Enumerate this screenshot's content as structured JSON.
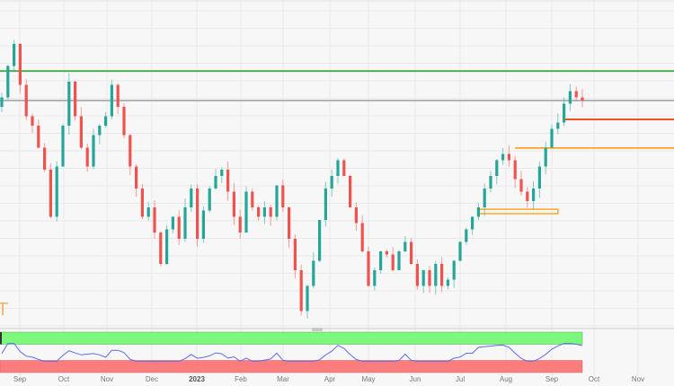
{
  "chart_data": {
    "type": "candlestick",
    "title": "",
    "price_scale": "relative index (no price axis shown)",
    "closes": [
      69,
      79,
      86,
      73,
      63,
      60,
      53,
      46,
      31,
      47,
      60,
      74,
      63,
      53,
      47,
      57,
      60,
      63,
      73,
      66,
      57,
      47,
      40,
      31,
      34,
      26,
      16,
      27,
      31,
      24,
      34,
      40,
      24,
      33,
      40,
      44,
      46,
      39,
      31,
      26,
      39,
      34,
      31,
      34,
      31,
      41,
      34,
      24,
      14,
      1,
      9,
      17,
      30,
      40,
      44,
      49,
      44,
      34,
      29,
      20,
      9,
      14,
      20,
      19,
      14,
      20,
      23,
      16,
      9,
      14,
      9,
      16,
      9,
      11,
      17,
      23,
      27,
      31,
      34,
      40,
      44,
      49,
      51,
      49,
      43,
      39,
      36,
      40,
      47,
      53,
      59,
      61,
      67,
      71,
      69,
      68
    ],
    "x_tick_labels": [
      "Sep",
      "Oct",
      "Nov",
      "Dec",
      "2023",
      "Feb",
      "Mar",
      "Apr",
      "May",
      "Jun",
      "Jul",
      "Aug",
      "Sep",
      "Oct",
      "Nov"
    ],
    "levels": [
      {
        "name": "resistance-green",
        "value": 77.4,
        "color": "#4caf50"
      },
      {
        "name": "level-gray",
        "value": 68,
        "color": "#b2b5be"
      },
      {
        "name": "support-red-orange",
        "value": 62,
        "color": "#f4511e",
        "from_index": 92
      },
      {
        "name": "support-orange",
        "value": 52.9,
        "color": "#ff9800",
        "from_index": 84
      }
    ],
    "zone": {
      "top": 33.4,
      "bottom": 32,
      "from_index": 78,
      "to_index": 91,
      "color": "#ffa726"
    },
    "indicator": {
      "type": "RSI",
      "overbought": 70,
      "oversold": 30,
      "line_color": "#5b6cf0",
      "overbought_color": "#7cf97c",
      "oversold_color": "#fb7c7c"
    },
    "colors": {
      "up": "#26a69a",
      "down": "#ef5350",
      "grid": "#e9e9e9",
      "background": "#f7f7f7"
    },
    "grid": true,
    "legend": "none"
  },
  "watermark": "T"
}
